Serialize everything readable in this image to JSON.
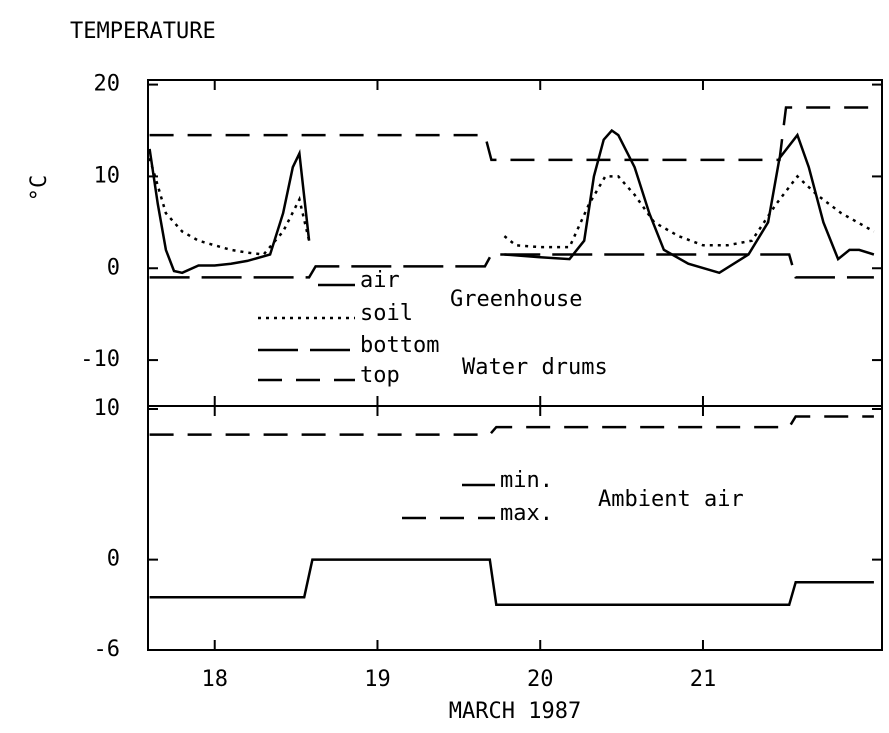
{
  "chart_data": [
    {
      "type": "line",
      "title": "TEMPERATURE",
      "y_label": "°C",
      "xlim": [
        17.59,
        22.1
      ],
      "xticks": [
        18,
        19,
        20,
        21
      ],
      "ylim": [
        -15,
        20.5
      ],
      "yticks": [
        20,
        10,
        0,
        -10
      ],
      "legend": "center",
      "annotations": [
        "Greenhouse",
        "Water drums"
      ],
      "series": [
        {
          "name": "air",
          "color": "#000000",
          "line_style": "solid",
          "x": [
            17.6,
            17.65,
            17.7,
            17.75,
            17.8,
            17.9,
            18.0,
            18.1,
            18.2,
            18.34,
            18.42,
            18.48,
            18.52,
            18.58,
            null,
            19.78,
            20.0,
            20.18,
            20.27,
            20.33,
            20.39,
            20.44,
            20.48,
            20.58,
            20.67,
            20.76,
            20.91,
            21.1,
            21.28,
            21.4,
            21.47,
            21.58,
            21.65,
            21.74,
            21.83,
            21.9,
            21.96,
            22.05
          ],
          "values": [
            13,
            7,
            2,
            -0.3,
            -0.5,
            0.3,
            0.3,
            0.5,
            0.8,
            1.5,
            6,
            11,
            12.5,
            3,
            null,
            1.5,
            1.2,
            1,
            3,
            10,
            14,
            15,
            14.5,
            11,
            6,
            2,
            0.5,
            -0.5,
            1.5,
            5,
            12,
            14.5,
            11,
            5,
            1,
            2,
            2,
            1.5
          ]
        },
        {
          "name": "soil",
          "color": "#000000",
          "line_style": "dotted",
          "x": [
            17.6,
            17.7,
            17.8,
            17.9,
            18.0,
            18.1,
            18.2,
            18.3,
            18.42,
            18.52,
            18.58,
            null,
            19.78,
            19.85,
            20.0,
            20.18,
            20.3,
            20.4,
            20.48,
            20.58,
            20.7,
            20.85,
            21.0,
            21.15,
            21.3,
            21.45,
            21.58,
            21.7,
            21.85,
            22.0,
            22.05
          ],
          "values": [
            12,
            6,
            4,
            3,
            2.5,
            2,
            1.7,
            1.5,
            4,
            7.5,
            3,
            null,
            3.5,
            2.5,
            2.3,
            2.3,
            7,
            10,
            10,
            8,
            5,
            3.5,
            2.5,
            2.5,
            3,
            7,
            10,
            8,
            6,
            4.5,
            4
          ]
        },
        {
          "name": "bottom",
          "color": "#000000",
          "line_style": "longdash",
          "x": [
            17.6,
            18.58,
            18.62,
            19.66,
            19.7,
            21.53,
            21.57,
            22.05
          ],
          "values": [
            -1,
            -1,
            0.2,
            0.2,
            1.5,
            1.5,
            -1,
            -1
          ]
        },
        {
          "name": "top",
          "color": "#000000",
          "line_style": "dashed",
          "x": [
            17.6,
            19.66,
            19.7,
            21.47,
            21.51,
            22.05
          ],
          "values": [
            14.5,
            14.5,
            11.8,
            11.8,
            17.5,
            17.5
          ]
        }
      ]
    },
    {
      "type": "line",
      "x_label": "MARCH 1987",
      "xlim": [
        17.59,
        22.1
      ],
      "xticks": [
        18,
        19,
        20,
        21
      ],
      "ylim": [
        -6,
        10.2
      ],
      "yticks": [
        10,
        0,
        -6
      ],
      "legend": "center",
      "annotations": [
        "Ambient air"
      ],
      "series": [
        {
          "name": "min.",
          "color": "#000000",
          "line_style": "solid",
          "x": [
            17.6,
            18.55,
            18.6,
            19.69,
            19.73,
            21.53,
            21.57,
            22.05
          ],
          "values": [
            -2.5,
            -2.5,
            0,
            0,
            -3,
            -3,
            -1.5,
            -1.5
          ]
        },
        {
          "name": "max.",
          "color": "#000000",
          "line_style": "dashed",
          "x": [
            17.6,
            19.69,
            19.73,
            21.53,
            21.57,
            22.05
          ],
          "values": [
            8.3,
            8.3,
            8.8,
            8.8,
            9.5,
            9.5
          ]
        }
      ]
    }
  ]
}
